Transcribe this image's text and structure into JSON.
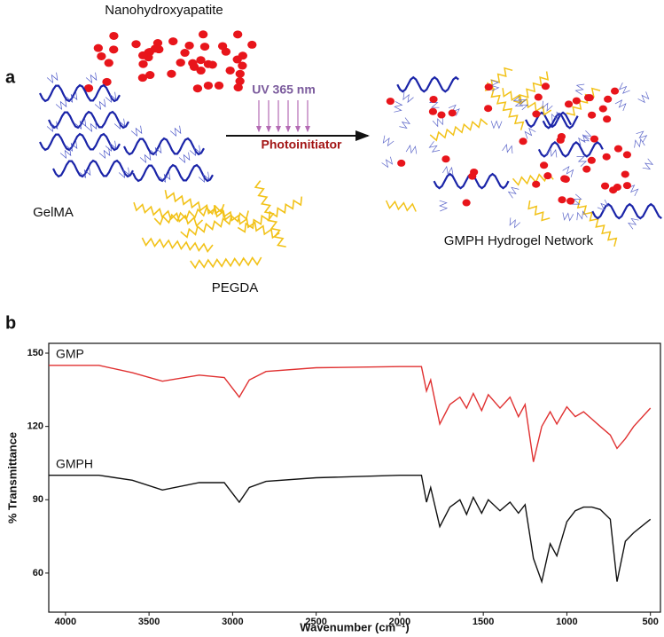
{
  "figure": {
    "panel_a": {
      "label": "a",
      "nanohydroxyapatite": "Nanohydroxyapatite",
      "uv": "UV 365 nm",
      "photoinitiator": "Photoinitiator",
      "gelma": "GelMA",
      "pegda": "PEGDA",
      "network": "GMPH Hydrogel Network"
    },
    "panel_b": {
      "label": "b"
    }
  },
  "chart_data": {
    "type": "line",
    "x_label": "Wavenumber (cm⁻¹)",
    "y_label": "% Transmittance",
    "x": [
      4100,
      3800,
      3600,
      3420,
      3200,
      3050,
      2960,
      2900,
      2800,
      2500,
      2000,
      1870,
      1840,
      1815,
      1760,
      1700,
      1640,
      1600,
      1560,
      1510,
      1470,
      1400,
      1340,
      1290,
      1250,
      1200,
      1150,
      1100,
      1060,
      1000,
      950,
      900,
      850,
      800,
      740,
      700,
      650,
      600,
      500
    ],
    "series": [
      {
        "name": "GMP",
        "color": "#e03131",
        "values": [
          145,
          145,
          142,
          138.5,
          141,
          140,
          132,
          139,
          142.5,
          144,
          144.5,
          144.5,
          134.5,
          139,
          121,
          129,
          132,
          127.5,
          133.5,
          126.5,
          133,
          127.5,
          132,
          124,
          129,
          105.5,
          120,
          126,
          121,
          128,
          124,
          126,
          123,
          120,
          116.5,
          111,
          115,
          120,
          127.5
        ]
      },
      {
        "name": "GMPH",
        "color": "#111111",
        "values": [
          100,
          100,
          98,
          94,
          97,
          97,
          89,
          95,
          97.5,
          99,
          100,
          100,
          89,
          95,
          79,
          87,
          90,
          84,
          91,
          84.5,
          90,
          85.5,
          89,
          84.5,
          88,
          66,
          56.5,
          72,
          67,
          81,
          85.5,
          87,
          87,
          86,
          82,
          56.5,
          73,
          76.5,
          82
        ]
      }
    ],
    "xlim": [
      4100,
      440
    ],
    "ylim": [
      44,
      154
    ],
    "xticks": [
      4000,
      3500,
      3000,
      2500,
      2000,
      1500,
      1000,
      500
    ],
    "yticks": [
      60,
      90,
      120,
      150
    ]
  }
}
